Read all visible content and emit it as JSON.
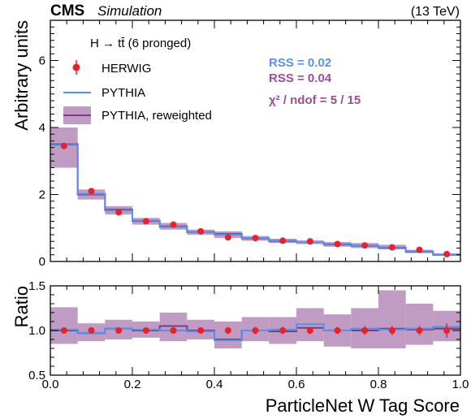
{
  "header": {
    "experiment": "CMS",
    "subtitle": "Simulation",
    "energy": "(13 TeV)"
  },
  "legend": {
    "title": "H → tt̄ (6 pronged)",
    "entries": [
      "HERWIG",
      "PYTHIA",
      "PYTHIA, reweighted"
    ]
  },
  "stats": {
    "rss_pythia": "RSS = 0.02",
    "rss_reweighted": "RSS = 0.04",
    "chi2": "χ² / ndof = 5 / 15"
  },
  "colors": {
    "herwig": "#e8222a",
    "pythia": "#5591e8",
    "reweighted_line": "#7a3d7e",
    "reweighted_band": "#b58ab8",
    "rss_pythia": "#5a92e6",
    "rss_reweighted": "#9a4f96"
  },
  "chart_data": {
    "type": "line",
    "xlabel": "ParticleNet W Tag Score",
    "ylabel_top": "Arbitrary units",
    "ylabel_bottom": "Ratio",
    "xlim": [
      0.0,
      1.0
    ],
    "ylim_top": [
      0,
      7.2
    ],
    "ylim_bottom": [
      0.5,
      1.5
    ],
    "x_ticks": [
      "0.0",
      "0.2",
      "0.4",
      "0.6",
      "0.8",
      "1.0"
    ],
    "y_ticks_top": [
      "0",
      "2",
      "4",
      "6"
    ],
    "y_ticks_bottom": [
      "0.5",
      "1.0",
      "1.5"
    ],
    "bin_edges": [
      0.0,
      0.0667,
      0.1333,
      0.2,
      0.2667,
      0.3333,
      0.4,
      0.4667,
      0.5333,
      0.6,
      0.6667,
      0.7333,
      0.8,
      0.8667,
      0.9333,
      1.0
    ],
    "series": [
      {
        "name": "HERWIG",
        "values": [
          3.45,
          2.1,
          1.47,
          1.2,
          1.1,
          0.9,
          0.72,
          0.7,
          0.62,
          0.6,
          0.52,
          0.48,
          0.42,
          0.35,
          0.22
        ],
        "ratio": [
          1.0,
          1.0,
          1.0,
          1.0,
          1.0,
          1.0,
          1.0,
          1.0,
          1.0,
          1.0,
          1.0,
          1.0,
          1.0,
          1.0,
          1.0
        ],
        "ratio_err": [
          0.02,
          0.02,
          0.03,
          0.03,
          0.03,
          0.03,
          0.04,
          0.04,
          0.04,
          0.04,
          0.04,
          0.05,
          0.05,
          0.05,
          0.08
        ]
      },
      {
        "name": "PYTHIA",
        "values": [
          3.48,
          2.02,
          1.52,
          1.22,
          1.03,
          0.88,
          0.8,
          0.7,
          0.62,
          0.57,
          0.52,
          0.48,
          0.42,
          0.3,
          0.2
        ],
        "ratio": [
          1.01,
          0.97,
          1.02,
          1.01,
          1.0,
          0.99,
          0.89,
          1.0,
          1.01,
          1.07,
          1.0,
          1.02,
          1.01,
          1.02,
          1.04
        ]
      },
      {
        "name": "PYTHIA, reweighted",
        "values": [
          3.5,
          2.0,
          1.55,
          1.21,
          1.05,
          0.88,
          0.82,
          0.69,
          0.61,
          0.57,
          0.51,
          0.47,
          0.41,
          0.29,
          0.2
        ],
        "band_low": [
          2.8,
          1.85,
          1.4,
          1.1,
          0.95,
          0.8,
          0.7,
          0.62,
          0.55,
          0.52,
          0.44,
          0.4,
          0.36,
          0.25,
          0.17
        ],
        "band_high": [
          4.0,
          2.15,
          1.65,
          1.3,
          1.15,
          0.95,
          0.9,
          0.76,
          0.68,
          0.63,
          0.58,
          0.55,
          0.5,
          0.35,
          0.24
        ],
        "ratio": [
          1.0,
          0.97,
          1.02,
          1.0,
          1.05,
          1.0,
          0.9,
          1.0,
          0.99,
          1.03,
          1.0,
          1.0,
          1.02,
          1.01,
          1.02
        ],
        "ratio_low": [
          0.85,
          0.88,
          0.9,
          0.92,
          0.88,
          0.9,
          0.8,
          0.88,
          0.85,
          0.88,
          0.82,
          0.8,
          0.8,
          0.84,
          0.88
        ],
        "ratio_high": [
          1.26,
          1.08,
          1.12,
          1.1,
          1.2,
          1.12,
          1.1,
          1.15,
          1.15,
          1.25,
          1.18,
          1.25,
          1.45,
          1.3,
          1.22
        ]
      }
    ]
  }
}
